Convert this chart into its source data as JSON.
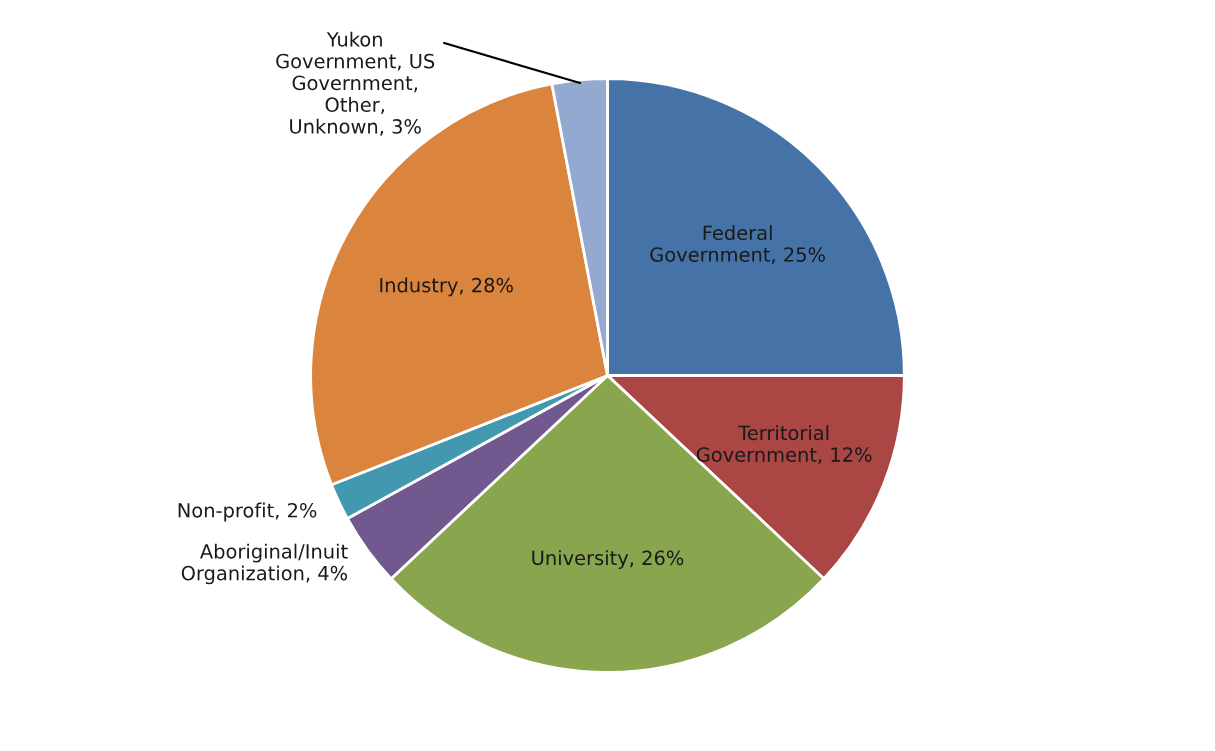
{
  "chart_data": {
    "type": "pie",
    "categories": [
      "Federal\nGovernment",
      "Territorial\nGovernment",
      "University",
      "Aboriginal/Inuit\nOrganization",
      "Non-profit",
      "Industry",
      "Yukon\nGovernment, US\nGovernment,\nOther,\nUnknown"
    ],
    "values": [
      25,
      12,
      26,
      4,
      2,
      28,
      3
    ],
    "value_labels": [
      "25%",
      "12%",
      "26%",
      "4%",
      "2%",
      "28%",
      "3%"
    ],
    "colors": [
      "#4572a7",
      "#aa4643",
      "#89a54e",
      "#71588f",
      "#4198af",
      "#db843d",
      "#93a9cf"
    ]
  }
}
